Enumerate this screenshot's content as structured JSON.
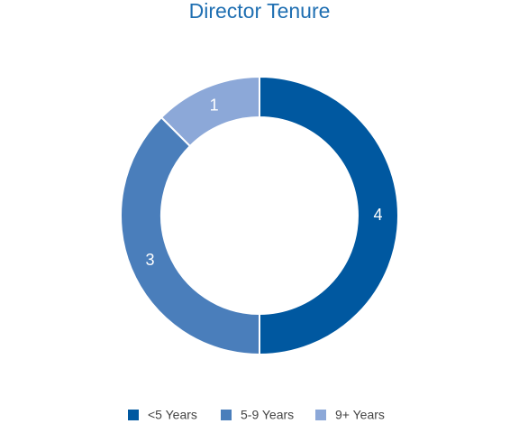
{
  "chart_data": {
    "type": "donut",
    "title": "Director Tenure",
    "categories": [
      "<5 Years",
      "5-9 Years",
      "9+ Years"
    ],
    "values": [
      4,
      3,
      1
    ],
    "colors": [
      "#0058a0",
      "#4a7ebb",
      "#8ca8d8"
    ],
    "legend": "bottom"
  }
}
